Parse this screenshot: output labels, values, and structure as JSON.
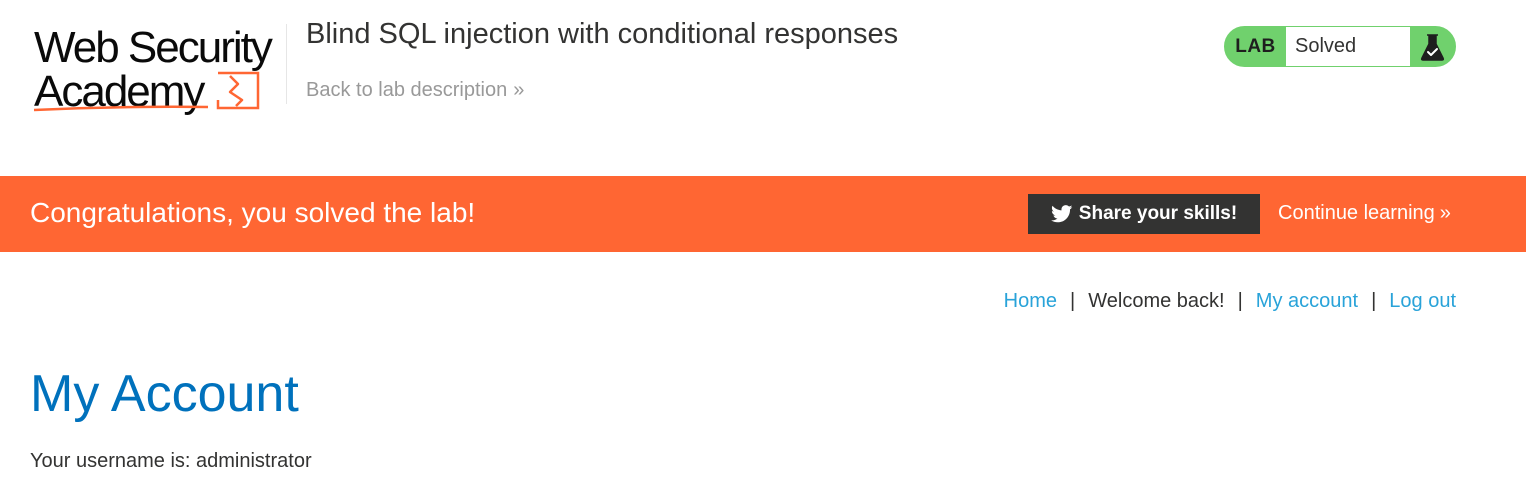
{
  "header": {
    "logo": {
      "line1": "Web Security",
      "line2": "Academy"
    },
    "lab_title": "Blind SQL injection with conditional responses",
    "back_link": "Back to lab description",
    "lab_status": {
      "label": "LAB",
      "status": "Solved",
      "icon": "flask-icon"
    }
  },
  "banner": {
    "message": "Congratulations, you solved the lab!",
    "share_button": "Share your skills!",
    "share_icon": "twitter-icon",
    "continue_link": "Continue learning"
  },
  "nav": {
    "home": "Home",
    "separator": "|",
    "welcome": "Welcome back!",
    "my_account": "My account",
    "log_out": "Log out"
  },
  "main": {
    "heading": "My Account",
    "username_label": "Your username is: administrator"
  },
  "colors": {
    "accent_orange": "#ff6633",
    "status_green": "#70d16d",
    "link_blue": "#29a3d9",
    "heading_blue": "#0071bc",
    "dark_button": "#333332"
  }
}
